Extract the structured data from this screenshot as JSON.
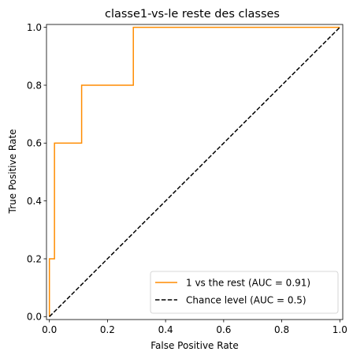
{
  "chart_data": {
    "type": "line",
    "title": "classe1-vs-le reste des classes",
    "xlabel": "False Positive Rate",
    "ylabel": "True Positive Rate",
    "xlim": [
      -0.01,
      1.01
    ],
    "ylim": [
      -0.01,
      1.01
    ],
    "xticks": [
      "0.0",
      "0.2",
      "0.4",
      "0.6",
      "0.8",
      "1.0"
    ],
    "yticks": [
      "0.0",
      "0.2",
      "0.4",
      "0.6",
      "0.8",
      "1.0"
    ],
    "grid": false,
    "legend_position": "lower-right",
    "series": [
      {
        "name": "1 vs the rest (AUC = 0.91)",
        "color": "#ff8c00",
        "style": "solid",
        "x": [
          0.0,
          0.0,
          0.0,
          0.0175,
          0.0175,
          0.111,
          0.111,
          0.289,
          0.289,
          1.0
        ],
        "y": [
          0.0,
          0.0,
          0.2,
          0.2,
          0.6,
          0.6,
          0.8,
          0.8,
          1.0,
          1.0
        ]
      },
      {
        "name": "Chance level (AUC = 0.5)",
        "color": "#000000",
        "style": "dashed",
        "x": [
          0.0,
          1.0
        ],
        "y": [
          0.0,
          1.0
        ]
      }
    ]
  }
}
